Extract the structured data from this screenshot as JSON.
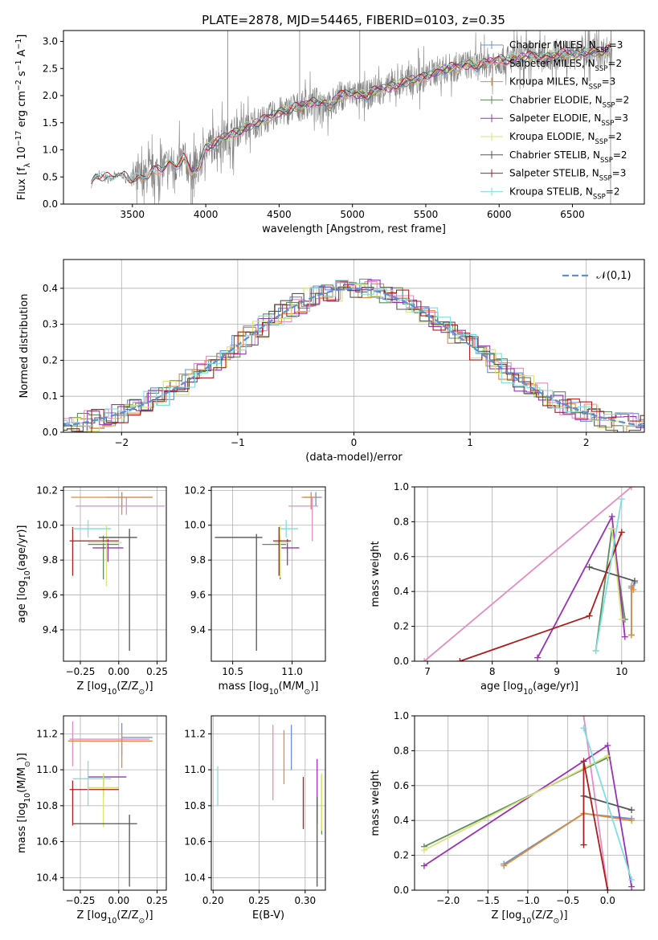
{
  "figure": {
    "title": "PLATE=2878, MJD=54465, FIBERID=0103, z=0.35"
  },
  "colors": {
    "Chabrier MILES": "#6b8fd0",
    "Salpeter MILES": "#e58cc4",
    "Kroupa MILES": "#e08a3c",
    "Chabrier ELODIE": "#5e8a5e",
    "Salpeter ELODIE": "#9b30b8",
    "Kroupa ELODIE": "#d7e47a",
    "Chabrier STELIB": "#555555",
    "Salpeter STELIB": "#b01c1c",
    "Kroupa STELIB": "#7fdede",
    "data": "#808080",
    "normal": "#5b8fd6"
  },
  "chart_data": [
    {
      "id": "spectrum",
      "type": "line",
      "title": "PLATE=2878, MJD=54465, FIBERID=0103, z=0.35",
      "xlabel": "wavelength [Angstrom, rest frame]",
      "ylabel": "Flux [f$_\\lambda$ 10$^{-17}$ erg cm$^{-2}$ s$^{-1}$ A$^{-1}$]",
      "xlim": [
        3030,
        6990
      ],
      "ylim": [
        0,
        3.2
      ],
      "xticks": [
        3500,
        4000,
        4500,
        5000,
        5500,
        6000,
        6500
      ],
      "yticks": [
        0.0,
        0.5,
        1.0,
        1.5,
        2.0,
        2.5,
        3.0
      ],
      "legend_position": "top-right",
      "legend": [
        {
          "sub": "Chabrier MILES, N",
          "sup": "SSP",
          "tail": "=3"
        },
        {
          "sub": "Salpeter MILES, N",
          "sup": "SSP",
          "tail": "=2"
        },
        {
          "sub": "Kroupa MILES, N",
          "sup": "SSP",
          "tail": "=3"
        },
        {
          "sub": "Chabrier ELODIE, N",
          "sup": "SSP",
          "tail": "=2"
        },
        {
          "sub": "Salpeter ELODIE, N",
          "sup": "SSP",
          "tail": "=3"
        },
        {
          "sub": "Kroupa ELODIE, N",
          "sup": "SSP",
          "tail": "=2"
        },
        {
          "sub": "Chabrier STELIB, N",
          "sup": "SSP",
          "tail": "=2"
        },
        {
          "sub": "Salpeter STELIB, N",
          "sup": "SSP",
          "tail": "=3"
        },
        {
          "sub": "Kroupa STELIB, N",
          "sup": "SSP",
          "tail": "=2"
        }
      ],
      "data_spectrum": {
        "x": [
          3220,
          3250,
          3300,
          3350,
          3400,
          3450,
          3500,
          3550,
          3600,
          3650,
          3700,
          3750,
          3800,
          3850,
          3900,
          3950,
          4000,
          4050,
          4100,
          4150,
          4200,
          4250,
          4300,
          4350,
          4400,
          4450,
          4500,
          4550,
          4600,
          4650,
          4700,
          4750,
          4800,
          4850,
          4900,
          4950,
          5000,
          5050,
          5100,
          5150,
          5200,
          5250,
          5300,
          5350,
          5400,
          5450,
          5500,
          5550,
          5600,
          5650,
          5700,
          5750,
          5800,
          5850,
          5900,
          5950,
          6000,
          6050,
          6100,
          6150,
          6200,
          6250,
          6300,
          6350,
          6400,
          6450,
          6500,
          6550,
          6600,
          6650,
          6700,
          6750,
          6770
        ],
        "y": [
          0.35,
          0.52,
          0.5,
          0.48,
          0.53,
          0.5,
          0.45,
          0.48,
          0.52,
          0.62,
          0.65,
          0.75,
          0.72,
          0.85,
          0.6,
          0.65,
          1.05,
          1.1,
          1.2,
          1.25,
          1.3,
          1.38,
          1.45,
          1.5,
          1.55,
          1.62,
          1.7,
          1.72,
          1.78,
          1.8,
          1.85,
          1.88,
          1.9,
          1.8,
          1.98,
          2.02,
          2.05,
          2.02,
          2.0,
          2.08,
          2.12,
          2.15,
          2.2,
          2.25,
          2.28,
          2.3,
          2.35,
          2.42,
          2.48,
          2.5,
          2.52,
          2.55,
          2.58,
          2.55,
          2.6,
          2.62,
          2.66,
          2.65,
          2.68,
          2.7,
          2.72,
          2.72,
          2.7,
          2.74,
          2.75,
          2.78,
          2.76,
          2.8,
          2.8,
          2.82,
          2.8,
          2.85,
          2.82
        ]
      }
    },
    {
      "id": "residuals",
      "type": "line",
      "xlabel": "(data-model)/error",
      "ylabel": "Normed distribution",
      "xlim": [
        -2.5,
        2.5
      ],
      "ylim": [
        0,
        0.48
      ],
      "xticks": [
        -2,
        -1,
        0,
        1,
        2
      ],
      "yticks": [
        0.0,
        0.1,
        0.2,
        0.3,
        0.4
      ],
      "grid": true,
      "legend_position": "top-right",
      "legend": [
        {
          "label": "$\\mathcal{N}(0,1)$"
        }
      ],
      "normal_curve": {
        "mean": 0,
        "sigma": 1
      }
    },
    {
      "id": "age-vs-Z",
      "type": "scatter",
      "xlabel": "Z [log$_{10}$(Z/Z$_\\odot$)]",
      "ylabel": "age  [log$_{10}$(age/yr)]",
      "xlim": [
        -0.36,
        0.31
      ],
      "ylim": [
        9.22,
        10.22
      ],
      "xticks": [
        -0.25,
        0.0,
        0.25
      ],
      "xtick_labels": [
        "−0.25",
        "0.00",
        "0.25"
      ],
      "yticks": [
        9.4,
        9.6,
        9.8,
        10.0,
        10.2
      ],
      "grid": true,
      "points": [
        {
          "model": "Chabrier MILES",
          "x": 0.02,
          "y": 10.16,
          "xerr": [
            0.1,
            0.2
          ],
          "yerr": [
            0.06,
            0.03
          ]
        },
        {
          "model": "Salpeter MILES",
          "x": 0.05,
          "y": 10.11,
          "xerr": [
            0.33,
            0.25
          ],
          "yerr": [
            0.05,
            0.05
          ]
        },
        {
          "model": "Kroupa MILES",
          "x": 0.02,
          "y": 10.16,
          "xerr": [
            0.33,
            0.2
          ],
          "yerr": [
            0.1,
            0.03
          ]
        },
        {
          "model": "Chabrier ELODIE",
          "x": -0.1,
          "y": 9.89,
          "xerr": [
            0.1,
            0.1
          ],
          "yerr": [
            0.2,
            0.05
          ]
        },
        {
          "model": "Salpeter ELODIE",
          "x": -0.07,
          "y": 9.87,
          "xerr": [
            0.1,
            0.1
          ],
          "yerr": [
            0.08,
            0.05
          ]
        },
        {
          "model": "Kroupa ELODIE",
          "x": -0.08,
          "y": 9.9,
          "xerr": [
            0.12,
            0.1
          ],
          "yerr": [
            0.25,
            0.1
          ]
        },
        {
          "model": "Chabrier STELIB",
          "x": 0.07,
          "y": 9.93,
          "xerr": [
            0.2,
            0.05
          ],
          "yerr": [
            0.65,
            0.05
          ]
        },
        {
          "model": "Salpeter STELIB",
          "x": -0.3,
          "y": 9.91,
          "xerr": [
            0.02,
            0.3
          ],
          "yerr": [
            0.2,
            0.08
          ]
        },
        {
          "model": "Kroupa STELIB",
          "x": -0.2,
          "y": 9.98,
          "xerr": [
            0.1,
            0.15
          ],
          "yerr": [
            0.05,
            0.05
          ]
        }
      ]
    },
    {
      "id": "age-vs-mass",
      "type": "scatter",
      "xlabel": "mass [log$_{10}$(M/M$_\\odot$)]",
      "ylabel": "",
      "xlim": [
        10.32,
        11.28
      ],
      "ylim": [
        9.22,
        10.22
      ],
      "xticks": [
        10.5,
        11.0
      ],
      "xtick_labels": [
        "10.5",
        "11.0"
      ],
      "yticks": [
        9.4,
        9.6,
        9.8,
        10.0,
        10.2
      ],
      "grid": true,
      "points": [
        {
          "model": "Chabrier MILES",
          "x": 11.2,
          "y": 10.16,
          "xerr": [
            0.1,
            0.05
          ],
          "yerr": [
            0.05,
            0.03
          ]
        },
        {
          "model": "Salpeter MILES",
          "x": 11.17,
          "y": 10.11,
          "xerr": [
            0.2,
            0.05
          ],
          "yerr": [
            0.2,
            0.05
          ]
        },
        {
          "model": "Kroupa MILES",
          "x": 11.16,
          "y": 10.16,
          "xerr": [
            0.08,
            0.05
          ],
          "yerr": [
            0.07,
            0.03
          ]
        },
        {
          "model": "Chabrier ELODIE",
          "x": 10.9,
          "y": 9.89,
          "xerr": [
            0.15,
            0.05
          ],
          "yerr": [
            0.2,
            0.05
          ]
        },
        {
          "model": "Salpeter ELODIE",
          "x": 10.96,
          "y": 9.87,
          "xerr": [
            0.05,
            0.1
          ],
          "yerr": [
            0.1,
            0.05
          ]
        },
        {
          "model": "Kroupa ELODIE",
          "x": 10.9,
          "y": 9.9,
          "xerr": [
            0.05,
            0.08
          ],
          "yerr": [
            0.2,
            0.1
          ]
        },
        {
          "model": "Chabrier STELIB",
          "x": 10.7,
          "y": 9.93,
          "xerr": [
            0.35,
            0.05
          ],
          "yerr": [
            0.65,
            0.02
          ]
        },
        {
          "model": "Salpeter STELIB",
          "x": 10.89,
          "y": 9.91,
          "xerr": [
            0.05,
            0.1
          ],
          "yerr": [
            0.2,
            0.08
          ]
        },
        {
          "model": "Kroupa STELIB",
          "x": 10.95,
          "y": 9.98,
          "xerr": [
            0.05,
            0.1
          ],
          "yerr": [
            0.05,
            0.05
          ]
        }
      ]
    },
    {
      "id": "weight-vs-age",
      "type": "line",
      "xlabel": "age  [log$_{10}$(age/yr)]",
      "ylabel": "mass weight",
      "xlim": [
        6.8,
        10.35
      ],
      "ylim": [
        0,
        1.0
      ],
      "xticks": [
        7,
        8,
        9,
        10
      ],
      "yticks": [
        0.0,
        0.2,
        0.4,
        0.6,
        0.8,
        1.0
      ],
      "grid": true,
      "series": [
        {
          "model": "Chabrier MILES",
          "x": [
            10.2,
            10.15,
            10.15
          ],
          "y": [
            0.45,
            0.42,
            0.15
          ]
        },
        {
          "model": "Salpeter MILES",
          "x": [
            6.95,
            10.15
          ],
          "y": [
            0.0,
            1.0
          ]
        },
        {
          "model": "Kroupa MILES",
          "x": [
            10.18,
            10.15,
            10.15
          ],
          "y": [
            0.41,
            0.43,
            0.15
          ]
        },
        {
          "model": "Chabrier ELODIE",
          "x": [
            9.6,
            9.85,
            10.05
          ],
          "y": [
            0.06,
            0.76,
            0.24
          ]
        },
        {
          "model": "Salpeter ELODIE",
          "x": [
            8.7,
            9.85,
            10.05
          ],
          "y": [
            0.02,
            0.83,
            0.14
          ]
        },
        {
          "model": "Kroupa ELODIE",
          "x": [
            9.85,
            10.0
          ],
          "y": [
            0.76,
            0.24
          ]
        },
        {
          "model": "Chabrier STELIB",
          "x": [
            9.5,
            10.2
          ],
          "y": [
            0.54,
            0.46
          ]
        },
        {
          "model": "Salpeter STELIB",
          "x": [
            7.5,
            9.5,
            10.0
          ],
          "y": [
            0.0,
            0.26,
            0.74
          ]
        },
        {
          "model": "Kroupa STELIB",
          "x": [
            9.6,
            10.0
          ],
          "y": [
            0.06,
            0.93
          ]
        }
      ]
    },
    {
      "id": "mass-vs-Z",
      "type": "scatter",
      "xlabel": "Z [log$_{10}$(Z/Z$_\\odot$)]",
      "ylabel": "mass [log$_{10}$(M/M$_\\odot$)]",
      "xlim": [
        -0.36,
        0.31
      ],
      "ylim": [
        10.33,
        11.3
      ],
      "xticks": [
        -0.25,
        0.0,
        0.25
      ],
      "xtick_labels": [
        "−0.25",
        "0.00",
        "0.25"
      ],
      "yticks": [
        10.4,
        10.6,
        10.8,
        11.0,
        11.2
      ],
      "grid": true,
      "points": [
        {
          "model": "Chabrier MILES",
          "x": 0.02,
          "y": 11.18,
          "xerr": [
            0.0,
            0.2
          ],
          "yerr": [
            0.1,
            0.08
          ]
        },
        {
          "model": "Salpeter MILES",
          "x": -0.3,
          "y": 11.17,
          "xerr": [
            0.02,
            0.5
          ],
          "yerr": [
            0.15,
            0.1
          ]
        },
        {
          "model": "Kroupa MILES",
          "x": 0.02,
          "y": 11.16,
          "xerr": [
            0.35,
            0.2
          ],
          "yerr": [
            0.15,
            0.05
          ]
        },
        {
          "model": "Chabrier ELODIE",
          "x": -0.1,
          "y": 10.9,
          "xerr": [
            0.1,
            0.1
          ],
          "yerr": [
            0.05,
            0.05
          ]
        },
        {
          "model": "Salpeter ELODIE",
          "x": -0.1,
          "y": 10.96,
          "xerr": [
            0.1,
            0.15
          ],
          "yerr": [
            0.05,
            0.02
          ]
        },
        {
          "model": "Kroupa ELODIE",
          "x": -0.1,
          "y": 10.9,
          "xerr": [
            0.1,
            0.1
          ],
          "yerr": [
            0.22,
            0.08
          ]
        },
        {
          "model": "Chabrier STELIB",
          "x": 0.07,
          "y": 10.7,
          "xerr": [
            0.37,
            0.05
          ],
          "yerr": [
            0.35,
            0.05
          ]
        },
        {
          "model": "Salpeter STELIB",
          "x": -0.3,
          "y": 10.89,
          "xerr": [
            0.02,
            0.3
          ],
          "yerr": [
            0.2,
            0.05
          ]
        },
        {
          "model": "Kroupa STELIB",
          "x": -0.2,
          "y": 10.95,
          "xerr": [
            0.1,
            0.15
          ],
          "yerr": [
            0.15,
            0.1
          ]
        }
      ]
    },
    {
      "id": "mass-vs-ebv",
      "type": "scatter",
      "xlabel": "E(B-V)",
      "ylabel": "",
      "xlim": [
        0.198,
        0.322
      ],
      "ylim": [
        10.33,
        11.3
      ],
      "xticks": [
        0.2,
        0.25,
        0.3
      ],
      "xtick_labels": [
        "0.20",
        "0.25",
        "0.30"
      ],
      "yticks": [
        10.4,
        10.6,
        10.8,
        11.0,
        11.2
      ],
      "grid": true,
      "points": [
        {
          "model": "Chabrier MILES",
          "x": 0.285,
          "y": 11.12,
          "yerr": [
            0.12,
            0.13
          ]
        },
        {
          "model": "Salpeter MILES",
          "x": 0.265,
          "y": 11.05,
          "yerr": [
            0.22,
            0.2
          ]
        },
        {
          "model": "Kroupa MILES",
          "x": 0.277,
          "y": 11.07,
          "yerr": [
            0.15,
            0.15
          ]
        },
        {
          "model": "Chabrier ELODIE",
          "x": 0.318,
          "y": 10.82,
          "yerr": [
            0.18,
            0.15
          ]
        },
        {
          "model": "Salpeter ELODIE",
          "x": 0.313,
          "y": 10.9,
          "yerr": [
            0.2,
            0.16
          ]
        },
        {
          "model": "Kroupa ELODIE",
          "x": 0.318,
          "y": 10.82,
          "yerr": [
            0.16,
            0.16
          ]
        },
        {
          "model": "Chabrier STELIB",
          "x": 0.313,
          "y": 10.7,
          "yerr": [
            0.35,
            0.15
          ]
        },
        {
          "model": "Salpeter STELIB",
          "x": 0.298,
          "y": 10.82,
          "yerr": [
            0.15,
            0.14
          ]
        },
        {
          "model": "Kroupa STELIB",
          "x": 0.205,
          "y": 10.92,
          "yerr": [
            0.12,
            0.1
          ]
        }
      ]
    },
    {
      "id": "weight-vs-Z",
      "type": "line",
      "xlabel": "Z [log$_{10}$(Z/Z$_\\odot$)]",
      "ylabel": "mass weight",
      "xlim": [
        -2.42,
        0.46
      ],
      "ylim": [
        0,
        1.0
      ],
      "xticks": [
        -2.0,
        -1.5,
        -1.0,
        -0.5,
        0.0
      ],
      "xtick_labels": [
        "−2.0",
        "−1.5",
        "−1.0",
        "−0.5",
        "0.0"
      ],
      "yticks": [
        0.0,
        0.2,
        0.4,
        0.6,
        0.8,
        1.0
      ],
      "grid": true,
      "series": [
        {
          "model": "Chabrier MILES",
          "x": [
            -1.3,
            -0.3,
            0.3
          ],
          "y": [
            0.15,
            0.44,
            0.41
          ]
        },
        {
          "model": "Salpeter MILES",
          "x": [
            -0.3,
            0.0
          ],
          "y": [
            1.0,
            0.0
          ]
        },
        {
          "model": "Kroupa MILES",
          "x": [
            -1.3,
            -0.3,
            0.3
          ],
          "y": [
            0.14,
            0.44,
            0.4
          ]
        },
        {
          "model": "Chabrier ELODIE",
          "x": [
            -2.3,
            0.0
          ],
          "y": [
            0.25,
            0.76
          ]
        },
        {
          "model": "Salpeter ELODIE",
          "x": [
            -2.3,
            0.0,
            0.3
          ],
          "y": [
            0.14,
            0.83,
            0.02
          ]
        },
        {
          "model": "Kroupa ELODIE",
          "x": [
            -2.3,
            0.0
          ],
          "y": [
            0.23,
            0.77
          ]
        },
        {
          "model": "Chabrier STELIB",
          "x": [
            -0.3,
            0.3
          ],
          "y": [
            0.54,
            0.46
          ]
        },
        {
          "model": "Salpeter STELIB",
          "x": [
            -0.3,
            -0.3,
            0.0
          ],
          "y": [
            0.26,
            0.74,
            0.0
          ]
        },
        {
          "model": "Kroupa STELIB",
          "x": [
            -0.3,
            0.3
          ],
          "y": [
            0.93,
            0.06
          ]
        }
      ]
    }
  ]
}
